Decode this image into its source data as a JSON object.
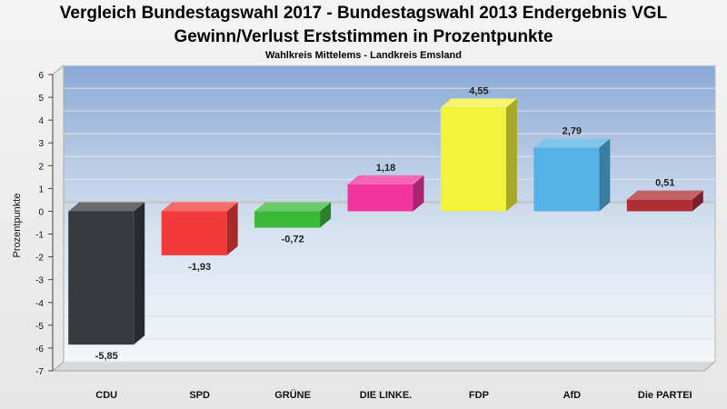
{
  "chart_data": {
    "type": "bar",
    "title": "Vergleich Bundestagswahl 2017 - Bundestagswahl 2013 Endergebnis VGL",
    "title_line2": "Gewinn/Verlust Erststimmen in Prozentpunkte",
    "subtitle": "Wahlkreis Mittelems - Landkreis Emsland",
    "ylabel": "Prozentpunkte",
    "xlabel": "",
    "ylim": [
      -7,
      6
    ],
    "yticks": [
      "6",
      "5",
      "4",
      "3",
      "2",
      "1",
      "0",
      "-1",
      "-2",
      "-3",
      "-4",
      "-5",
      "-6",
      "-7"
    ],
    "categories": [
      "CDU",
      "SPD",
      "GRÜNE",
      "DIE LINKE.",
      "FDP",
      "AfD",
      "Die PARTEI"
    ],
    "values": [
      -5.85,
      -1.93,
      -0.72,
      1.18,
      4.55,
      2.79,
      0.51
    ],
    "value_labels": [
      "-5,85",
      "-1,93",
      "-0,72",
      "1,18",
      "4,55",
      "2,79",
      "0,51"
    ],
    "colors": [
      "#383a3f",
      "#f23a3a",
      "#3ab83a",
      "#f2349e",
      "#f2f23a",
      "#55b2e6",
      "#b02e36"
    ],
    "grid": true,
    "legend": "none"
  }
}
